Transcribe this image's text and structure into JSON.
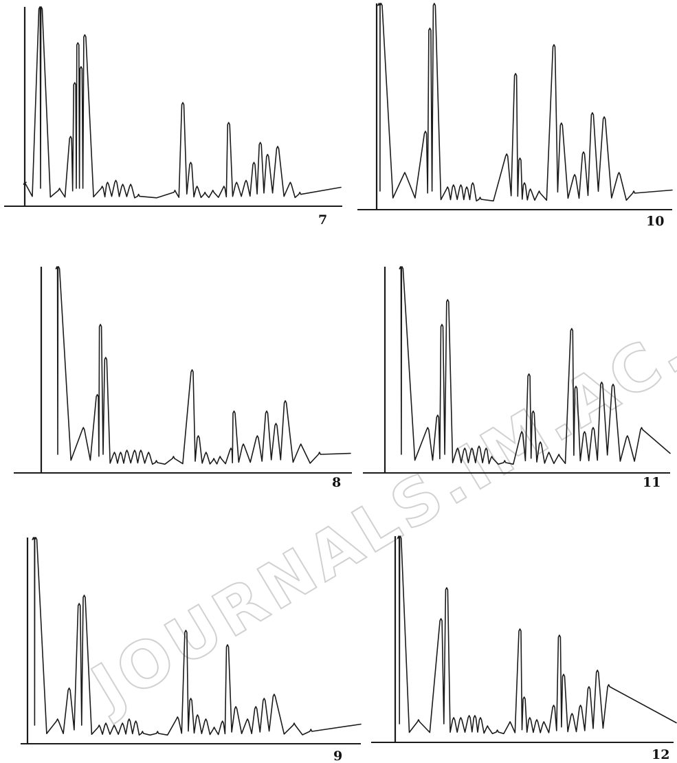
{
  "watermark": "JOURNALS.IM.AC.CN",
  "colors": {
    "ink": "#1a1a1a",
    "watermark": "#c9c9c9",
    "background": "#ffffff"
  },
  "chart_data": [
    {
      "type": "line",
      "label": "7",
      "peaks": [
        [
          0,
          12
        ],
        [
          0.048,
          100
        ],
        [
          0.052,
          100
        ],
        [
          0.11,
          9
        ],
        [
          0.145,
          35
        ],
        [
          0.158,
          62
        ],
        [
          0.168,
          82
        ],
        [
          0.178,
          70
        ],
        [
          0.19,
          86
        ],
        [
          0.245,
          10
        ],
        [
          0.262,
          12
        ],
        [
          0.288,
          13
        ],
        [
          0.31,
          11
        ],
        [
          0.335,
          11
        ],
        [
          0.36,
          6
        ],
        [
          0.475,
          8
        ],
        [
          0.5,
          52
        ],
        [
          0.525,
          22
        ],
        [
          0.545,
          10
        ],
        [
          0.57,
          7
        ],
        [
          0.595,
          8
        ],
        [
          0.63,
          10
        ],
        [
          0.645,
          42
        ],
        [
          0.67,
          12
        ],
        [
          0.7,
          13
        ],
        [
          0.725,
          22
        ],
        [
          0.745,
          32
        ],
        [
          0.768,
          26
        ],
        [
          0.8,
          30
        ],
        [
          0.84,
          12
        ],
        [
          0.87,
          7
        ]
      ]
    },
    {
      "type": "line",
      "label": "8",
      "peaks": [
        [
          0.055,
          100
        ],
        [
          0.06,
          100
        ],
        [
          0.14,
          22
        ],
        [
          0.185,
          38
        ],
        [
          0.195,
          72
        ],
        [
          0.212,
          56
        ],
        [
          0.24,
          10
        ],
        [
          0.26,
          10
        ],
        [
          0.28,
          11
        ],
        [
          0.305,
          11
        ],
        [
          0.325,
          11
        ],
        [
          0.35,
          10
        ],
        [
          0.375,
          6
        ],
        [
          0.43,
          8
        ],
        [
          0.49,
          50
        ],
        [
          0.51,
          18
        ],
        [
          0.535,
          10
        ],
        [
          0.56,
          7
        ],
        [
          0.58,
          8
        ],
        [
          0.615,
          12
        ],
        [
          0.625,
          30
        ],
        [
          0.655,
          14
        ],
        [
          0.7,
          18
        ],
        [
          0.73,
          30
        ],
        [
          0.76,
          24
        ],
        [
          0.79,
          35
        ],
        [
          0.84,
          14
        ],
        [
          0.9,
          10
        ]
      ]
    },
    {
      "type": "line",
      "label": "9",
      "peaks": [
        [
          0.018,
          100
        ],
        [
          0.025,
          100
        ],
        [
          0.09,
          12
        ],
        [
          0.125,
          27
        ],
        [
          0.155,
          68
        ],
        [
          0.17,
          72
        ],
        [
          0.215,
          9
        ],
        [
          0.235,
          10
        ],
        [
          0.26,
          9
        ],
        [
          0.285,
          10
        ],
        [
          0.305,
          12
        ],
        [
          0.325,
          11
        ],
        [
          0.345,
          6
        ],
        [
          0.39,
          6
        ],
        [
          0.45,
          13
        ],
        [
          0.475,
          55
        ],
        [
          0.49,
          22
        ],
        [
          0.51,
          14
        ],
        [
          0.535,
          12
        ],
        [
          0.56,
          8
        ],
        [
          0.585,
          11
        ],
        [
          0.6,
          48
        ],
        [
          0.625,
          18
        ],
        [
          0.66,
          12
        ],
        [
          0.685,
          18
        ],
        [
          0.71,
          22
        ],
        [
          0.74,
          24
        ],
        [
          0.8,
          10
        ],
        [
          0.85,
          7
        ]
      ]
    },
    {
      "type": "line",
      "label": "10",
      "peaks": [
        [
          0.008,
          100
        ],
        [
          0.015,
          100
        ],
        [
          0.095,
          18
        ],
        [
          0.165,
          38
        ],
        [
          0.18,
          88
        ],
        [
          0.195,
          100
        ],
        [
          0.24,
          11
        ],
        [
          0.26,
          12
        ],
        [
          0.285,
          12
        ],
        [
          0.305,
          11
        ],
        [
          0.325,
          13
        ],
        [
          0.35,
          6
        ],
        [
          0.44,
          27
        ],
        [
          0.47,
          66
        ],
        [
          0.485,
          25
        ],
        [
          0.5,
          13
        ],
        [
          0.52,
          10
        ],
        [
          0.55,
          9
        ],
        [
          0.6,
          80
        ],
        [
          0.625,
          42
        ],
        [
          0.67,
          17
        ],
        [
          0.7,
          28
        ],
        [
          0.73,
          47
        ],
        [
          0.77,
          45
        ],
        [
          0.82,
          18
        ],
        [
          0.87,
          9
        ]
      ]
    },
    {
      "type": "line",
      "label": "11",
      "peaks": [
        [
          0.055,
          100
        ],
        [
          0.06,
          100
        ],
        [
          0.15,
          22
        ],
        [
          0.185,
          28
        ],
        [
          0.2,
          72
        ],
        [
          0.22,
          84
        ],
        [
          0.255,
          12
        ],
        [
          0.28,
          12
        ],
        [
          0.305,
          12
        ],
        [
          0.33,
          13
        ],
        [
          0.355,
          12
        ],
        [
          0.375,
          8
        ],
        [
          0.42,
          6
        ],
        [
          0.48,
          20
        ],
        [
          0.505,
          48
        ],
        [
          0.52,
          30
        ],
        [
          0.545,
          15
        ],
        [
          0.575,
          10
        ],
        [
          0.61,
          9
        ],
        [
          0.655,
          70
        ],
        [
          0.67,
          42
        ],
        [
          0.7,
          20
        ],
        [
          0.73,
          22
        ],
        [
          0.76,
          44
        ],
        [
          0.8,
          43
        ],
        [
          0.85,
          18
        ],
        [
          0.9,
          22
        ]
      ]
    },
    {
      "type": "line",
      "label": "12",
      "peaks": [
        [
          0.015,
          100
        ],
        [
          0.02,
          100
        ],
        [
          0.085,
          11
        ],
        [
          0.165,
          60
        ],
        [
          0.185,
          75
        ],
        [
          0.21,
          12
        ],
        [
          0.235,
          12
        ],
        [
          0.265,
          13
        ],
        [
          0.285,
          13
        ],
        [
          0.305,
          12
        ],
        [
          0.33,
          8
        ],
        [
          0.365,
          6
        ],
        [
          0.41,
          10
        ],
        [
          0.445,
          55
        ],
        [
          0.46,
          22
        ],
        [
          0.48,
          12
        ],
        [
          0.505,
          11
        ],
        [
          0.53,
          10
        ],
        [
          0.565,
          18
        ],
        [
          0.585,
          52
        ],
        [
          0.6,
          33
        ],
        [
          0.63,
          14
        ],
        [
          0.66,
          18
        ],
        [
          0.69,
          27
        ],
        [
          0.72,
          35
        ],
        [
          0.76,
          28
        ]
      ]
    }
  ]
}
